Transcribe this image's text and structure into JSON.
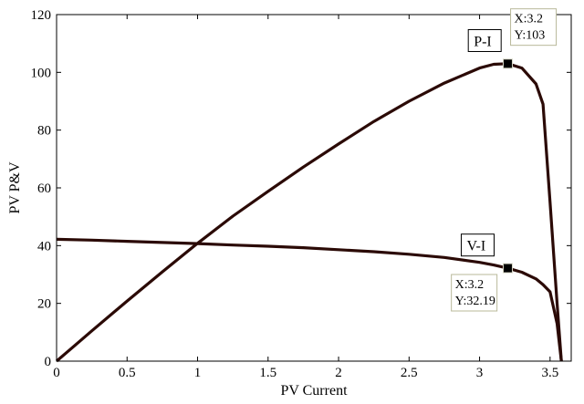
{
  "chart_data": {
    "type": "line",
    "xlabel": "PV Current",
    "ylabel": "PV P&V",
    "xlim": [
      0,
      3.65
    ],
    "ylim": [
      0,
      120
    ],
    "xticks": [
      "0",
      "0.5",
      "1",
      "1.5",
      "2",
      "2.5",
      "3",
      "3.5"
    ],
    "yticks": [
      "0",
      "20",
      "40",
      "60",
      "80",
      "100",
      "120"
    ],
    "grid": false,
    "line_color": "#2b0a06",
    "series": [
      {
        "name": "P-I",
        "x": [
          0,
          0.1,
          0.25,
          0.5,
          0.75,
          1.0,
          1.25,
          1.5,
          1.75,
          2.0,
          2.25,
          2.5,
          2.75,
          3.0,
          3.1,
          3.2,
          3.3,
          3.4,
          3.45,
          3.5,
          3.55,
          3.58
        ],
        "y": [
          0,
          4.2,
          10.5,
          20.8,
          30.9,
          40.8,
          50.2,
          58.8,
          67.2,
          75.2,
          83.0,
          90.0,
          96.3,
          101.5,
          102.8,
          103,
          101.5,
          96,
          89,
          55,
          20,
          0
        ]
      },
      {
        "name": "V-I",
        "x": [
          0,
          0.25,
          0.5,
          0.75,
          1.0,
          1.25,
          1.5,
          1.75,
          2.0,
          2.25,
          2.5,
          2.75,
          3.0,
          3.1,
          3.2,
          3.3,
          3.4,
          3.45,
          3.5,
          3.55,
          3.58
        ],
        "y": [
          42.2,
          41.9,
          41.5,
          41.1,
          40.7,
          40.2,
          39.8,
          39.3,
          38.6,
          37.9,
          37.0,
          35.9,
          34.2,
          33.3,
          32.19,
          30.8,
          28.5,
          26.5,
          24,
          13,
          0
        ]
      }
    ],
    "curve_labels": [
      {
        "text": "P-I",
        "x": 2.92,
        "y": 111
      },
      {
        "text": "V-I",
        "x": 2.87,
        "y": 40.2
      }
    ],
    "markers": [
      {
        "x": 3.2,
        "y": 103,
        "lines": [
          "X:3.2",
          "Y:103"
        ],
        "box_anchor": [
          3.22,
          122
        ],
        "box_side": "right"
      },
      {
        "x": 3.2,
        "y": 32.19,
        "lines": [
          "X:3.2",
          "Y:32.19"
        ],
        "box_anchor": [
          2.8,
          30
        ],
        "box_side": "right"
      }
    ]
  }
}
